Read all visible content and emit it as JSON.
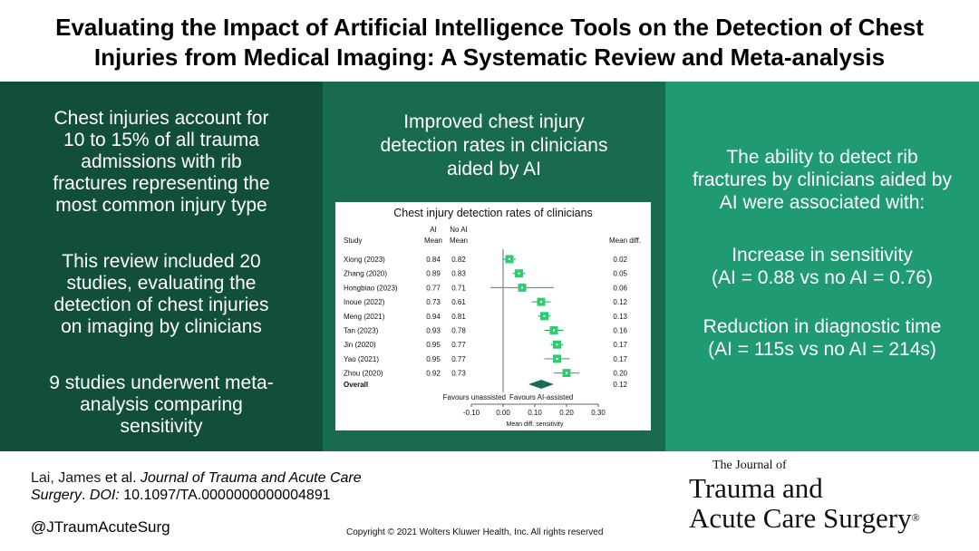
{
  "title": {
    "line1": "Evaluating the Impact of Artificial Intelligence Tools on the Detection of Chest",
    "line2": "Injuries from Medical Imaging: A Systematic Review and Meta-analysis"
  },
  "panel_left": {
    "para1": [
      "Chest injuries account for",
      "10 to 15% of all trauma",
      "admissions with rib",
      "fractures representing the",
      "most common injury type"
    ],
    "para2": [
      "This review included 20",
      "studies, evaluating the",
      "detection of chest injuries",
      "on imaging by clinicians"
    ],
    "para3": [
      "9 studies underwent meta-",
      "analysis comparing",
      "sensitivity"
    ]
  },
  "panel_middle": {
    "heading": [
      "Improved chest injury",
      "detection rates in clinicians",
      "aided by AI"
    ]
  },
  "panel_right": {
    "para1": [
      "The ability to detect rib",
      "fractures by clinicians aided by",
      "AI were associated with:"
    ],
    "para2": [
      "Increase in sensitivity",
      "(AI = 0.88 vs no AI = 0.76)"
    ],
    "para3": [
      "Reduction in diagnostic time",
      "(AI = 115s vs no AI = 214s)"
    ]
  },
  "chart_data": {
    "type": "forest",
    "title": "Chest injury detection rates of clinicians",
    "columns": {
      "study": "Study",
      "ai_top": "AI",
      "ai_bottom": "Mean",
      "noai_top": "No AI",
      "noai_bottom": "Mean",
      "diff": "Mean diff."
    },
    "studies": [
      {
        "study": "Xiong (2023)",
        "ai": "0.84",
        "noai": "0.82",
        "diff": 0.02,
        "diff_label": "0.02",
        "ci": [
          0.0,
          0.04
        ]
      },
      {
        "study": "Zhang (2020)",
        "ai": "0.89",
        "noai": "0.83",
        "diff": 0.05,
        "diff_label": "0.05",
        "ci": [
          0.03,
          0.07
        ]
      },
      {
        "study": "Hongbiao (2023)",
        "ai": "0.77",
        "noai": "0.71",
        "diff": 0.06,
        "diff_label": "0.06",
        "ci": [
          -0.04,
          0.16
        ]
      },
      {
        "study": "Inoue (2022)",
        "ai": "0.73",
        "noai": "0.61",
        "diff": 0.12,
        "diff_label": "0.12",
        "ci": [
          0.09,
          0.15
        ]
      },
      {
        "study": "Meng (2021)",
        "ai": "0.94",
        "noai": "0.81",
        "diff": 0.13,
        "diff_label": "0.13",
        "ci": [
          0.11,
          0.15
        ]
      },
      {
        "study": "Tan (2023)",
        "ai": "0.93",
        "noai": "0.78",
        "diff": 0.16,
        "diff_label": "0.16",
        "ci": [
          0.13,
          0.19
        ]
      },
      {
        "study": "Jin (2020)",
        "ai": "0.95",
        "noai": "0.77",
        "diff": 0.17,
        "diff_label": "0.17",
        "ci": [
          0.15,
          0.19
        ]
      },
      {
        "study": "Yao (2021)",
        "ai": "0.95",
        "noai": "0.77",
        "diff": 0.17,
        "diff_label": "0.17",
        "ci": [
          0.13,
          0.21
        ]
      },
      {
        "study": "Zhou (2020)",
        "ai": "0.92",
        "noai": "0.73",
        "diff": 0.2,
        "diff_label": "0.20",
        "ci": [
          0.16,
          0.24
        ]
      }
    ],
    "overall": {
      "label": "Overall",
      "diff": 0.12,
      "diff_label": "0.12",
      "ci": [
        0.08,
        0.16
      ]
    },
    "favours_left": "Favours unassisted",
    "favours_right": "Favours AI-assisted",
    "xlim": [
      -0.1,
      0.3
    ],
    "xticks": [
      "-0.10",
      "0.00",
      "0.10",
      "0.20",
      "0.30"
    ],
    "xtick_values": [
      -0.1,
      0.0,
      0.1,
      0.2,
      0.3
    ],
    "xlabel": "Mean diff. sensitivity",
    "colors": {
      "marker": "#2ecc71",
      "ci": "#1fa74f",
      "overall": "#1b6b58"
    }
  },
  "citation": {
    "author": "Lai, James",
    "etal": " et al. ",
    "journal": "Journal of Trauma and Acute Care",
    "journal2": "Surgery",
    "doi_label": "DOI:",
    "doi": " 10.1097/TA.0000000000004891"
  },
  "handle": "@JTraumAcuteSurg",
  "copyright": "Copyright © 2021 Wolters Kluwer Health, Inc. All rights reserved",
  "journal_logo": {
    "small": "The Journal of",
    "line1": "Trauma and",
    "line2": "Acute Care Surgery",
    "reg": "®"
  },
  "colors": {
    "panel_left": "#124f3b",
    "panel_middle": "#186b4f",
    "panel_right": "#1f9a72"
  }
}
